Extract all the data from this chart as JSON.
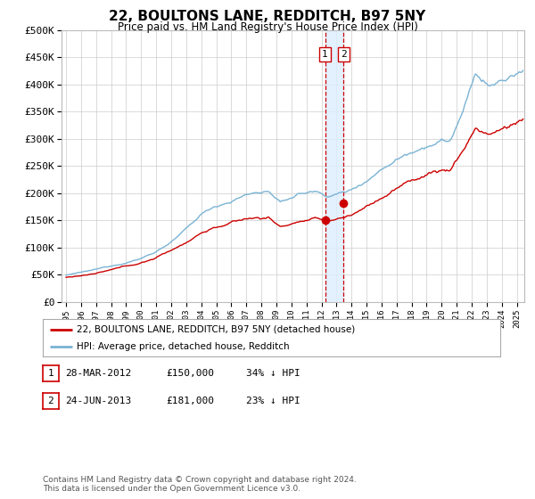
{
  "title": "22, BOULTONS LANE, REDDITCH, B97 5NY",
  "subtitle": "Price paid vs. HM Land Registry's House Price Index (HPI)",
  "ytick_values": [
    0,
    50000,
    100000,
    150000,
    200000,
    250000,
    300000,
    350000,
    400000,
    450000,
    500000
  ],
  "ylim": [
    0,
    500000
  ],
  "xlim_start": 1994.7,
  "xlim_end": 2025.5,
  "hpi_color": "#7ab3d4",
  "price_color": "#cc0000",
  "sale1_date": 2012.24,
  "sale1_price": 150000,
  "sale2_date": 2013.48,
  "sale2_price": 181000,
  "vline_color": "#cc0000",
  "vband_color": "#ddeeff",
  "legend_label1": "22, BOULTONS LANE, REDDITCH, B97 5NY (detached house)",
  "legend_label2": "HPI: Average price, detached house, Redditch",
  "table_row1": [
    "1",
    "28-MAR-2012",
    "£150,000",
    "34% ↓ HPI"
  ],
  "table_row2": [
    "2",
    "24-JUN-2013",
    "£181,000",
    "23% ↓ HPI"
  ],
  "footnote": "Contains HM Land Registry data © Crown copyright and database right 2024.\nThis data is licensed under the Open Government Licence v3.0.",
  "grid_color": "#cccccc",
  "bg_color": "#ffffff",
  "title_fontsize": 11,
  "subtitle_fontsize": 9
}
